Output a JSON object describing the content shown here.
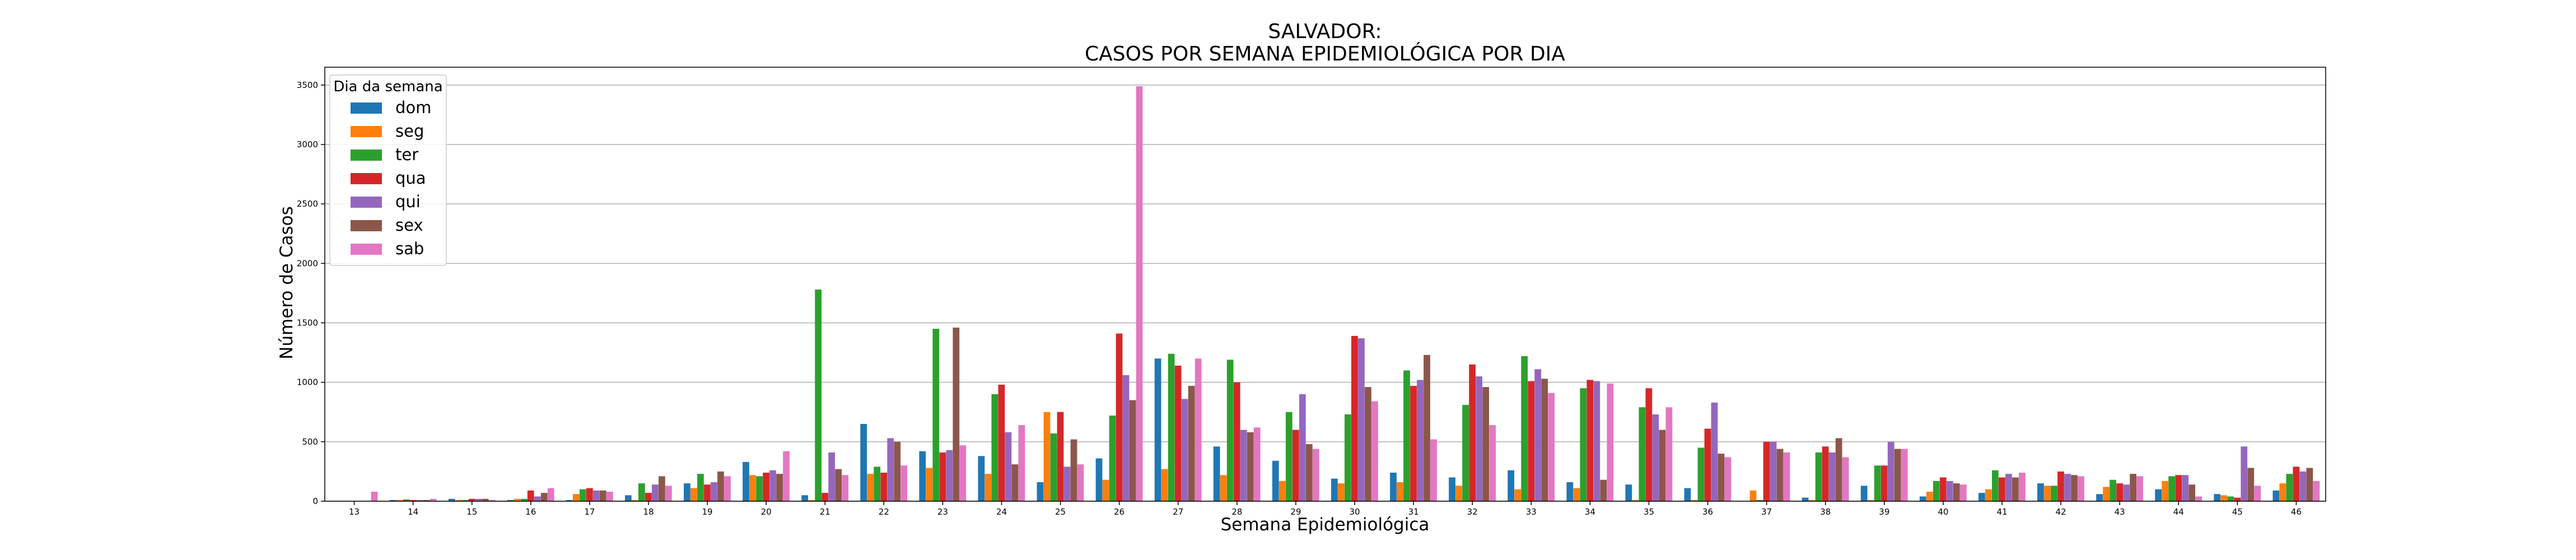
{
  "chart_data": {
    "type": "bar",
    "title": "SALVADOR:",
    "subtitle": "CASOS POR SEMANA EPIDEMIOLÓGICA POR DIA",
    "xlabel": "Semana Epidemiológica",
    "ylabel": "Número de Casos",
    "ylim": [
      0,
      3650
    ],
    "yticks": [
      0,
      500,
      1000,
      1500,
      2000,
      2500,
      3000,
      3500
    ],
    "grid": "horizontal",
    "legend": {
      "title": "Dia da semana",
      "position": "top-left"
    },
    "colors": [
      "#1f77b4",
      "#ff7f0e",
      "#2ca02c",
      "#d62728",
      "#9467bd",
      "#8c564b",
      "#e377c2"
    ],
    "categories": [
      "13",
      "14",
      "15",
      "16",
      "17",
      "18",
      "19",
      "20",
      "21",
      "22",
      "23",
      "24",
      "25",
      "26",
      "27",
      "28",
      "29",
      "30",
      "31",
      "32",
      "33",
      "34",
      "35",
      "36",
      "37",
      "38",
      "39",
      "40",
      "41",
      "42",
      "43",
      "44",
      "45",
      "46"
    ],
    "series": [
      {
        "name": "dom",
        "values": [
          0,
          10,
          20,
          10,
          10,
          50,
          150,
          330,
          50,
          650,
          420,
          380,
          160,
          360,
          1200,
          460,
          340,
          190,
          240,
          200,
          260,
          160,
          140,
          110,
          0,
          30,
          130,
          40,
          70,
          150,
          60,
          100,
          60,
          90
        ]
      },
      {
        "name": "seg",
        "values": [
          0,
          10,
          10,
          20,
          60,
          10,
          110,
          220,
          10,
          230,
          280,
          230,
          750,
          180,
          270,
          220,
          170,
          150,
          160,
          130,
          100,
          110,
          10,
          10,
          90,
          10,
          10,
          80,
          100,
          130,
          120,
          170,
          50,
          150
        ]
      },
      {
        "name": "ter",
        "values": [
          0,
          15,
          10,
          20,
          100,
          150,
          230,
          210,
          1780,
          290,
          1450,
          900,
          570,
          720,
          1240,
          1190,
          750,
          730,
          1100,
          810,
          1220,
          950,
          790,
          450,
          10,
          410,
          300,
          170,
          260,
          130,
          180,
          210,
          40,
          230
        ]
      },
      {
        "name": "qua",
        "values": [
          0,
          10,
          20,
          90,
          110,
          70,
          140,
          240,
          70,
          240,
          410,
          980,
          750,
          1410,
          1140,
          1000,
          600,
          1390,
          970,
          1150,
          1010,
          1020,
          950,
          610,
          500,
          460,
          300,
          200,
          200,
          250,
          150,
          220,
          30,
          290
        ]
      },
      {
        "name": "qui",
        "values": [
          0,
          10,
          20,
          40,
          90,
          140,
          160,
          260,
          410,
          530,
          430,
          580,
          290,
          1060,
          860,
          600,
          900,
          1370,
          1020,
          1050,
          1110,
          1010,
          730,
          830,
          500,
          410,
          500,
          170,
          230,
          230,
          140,
          220,
          460,
          250
        ]
      },
      {
        "name": "sex",
        "values": [
          0,
          10,
          20,
          70,
          90,
          210,
          250,
          230,
          270,
          500,
          1460,
          310,
          520,
          850,
          970,
          580,
          480,
          960,
          1230,
          960,
          1030,
          180,
          600,
          400,
          440,
          530,
          440,
          150,
          200,
          220,
          230,
          140,
          280,
          280
        ]
      },
      {
        "name": "sab",
        "values": [
          80,
          20,
          10,
          110,
          80,
          130,
          210,
          420,
          220,
          300,
          470,
          640,
          310,
          3490,
          1200,
          620,
          440,
          840,
          520,
          640,
          910,
          990,
          790,
          370,
          410,
          370,
          440,
          140,
          240,
          210,
          210,
          40,
          130,
          170
        ]
      }
    ]
  }
}
